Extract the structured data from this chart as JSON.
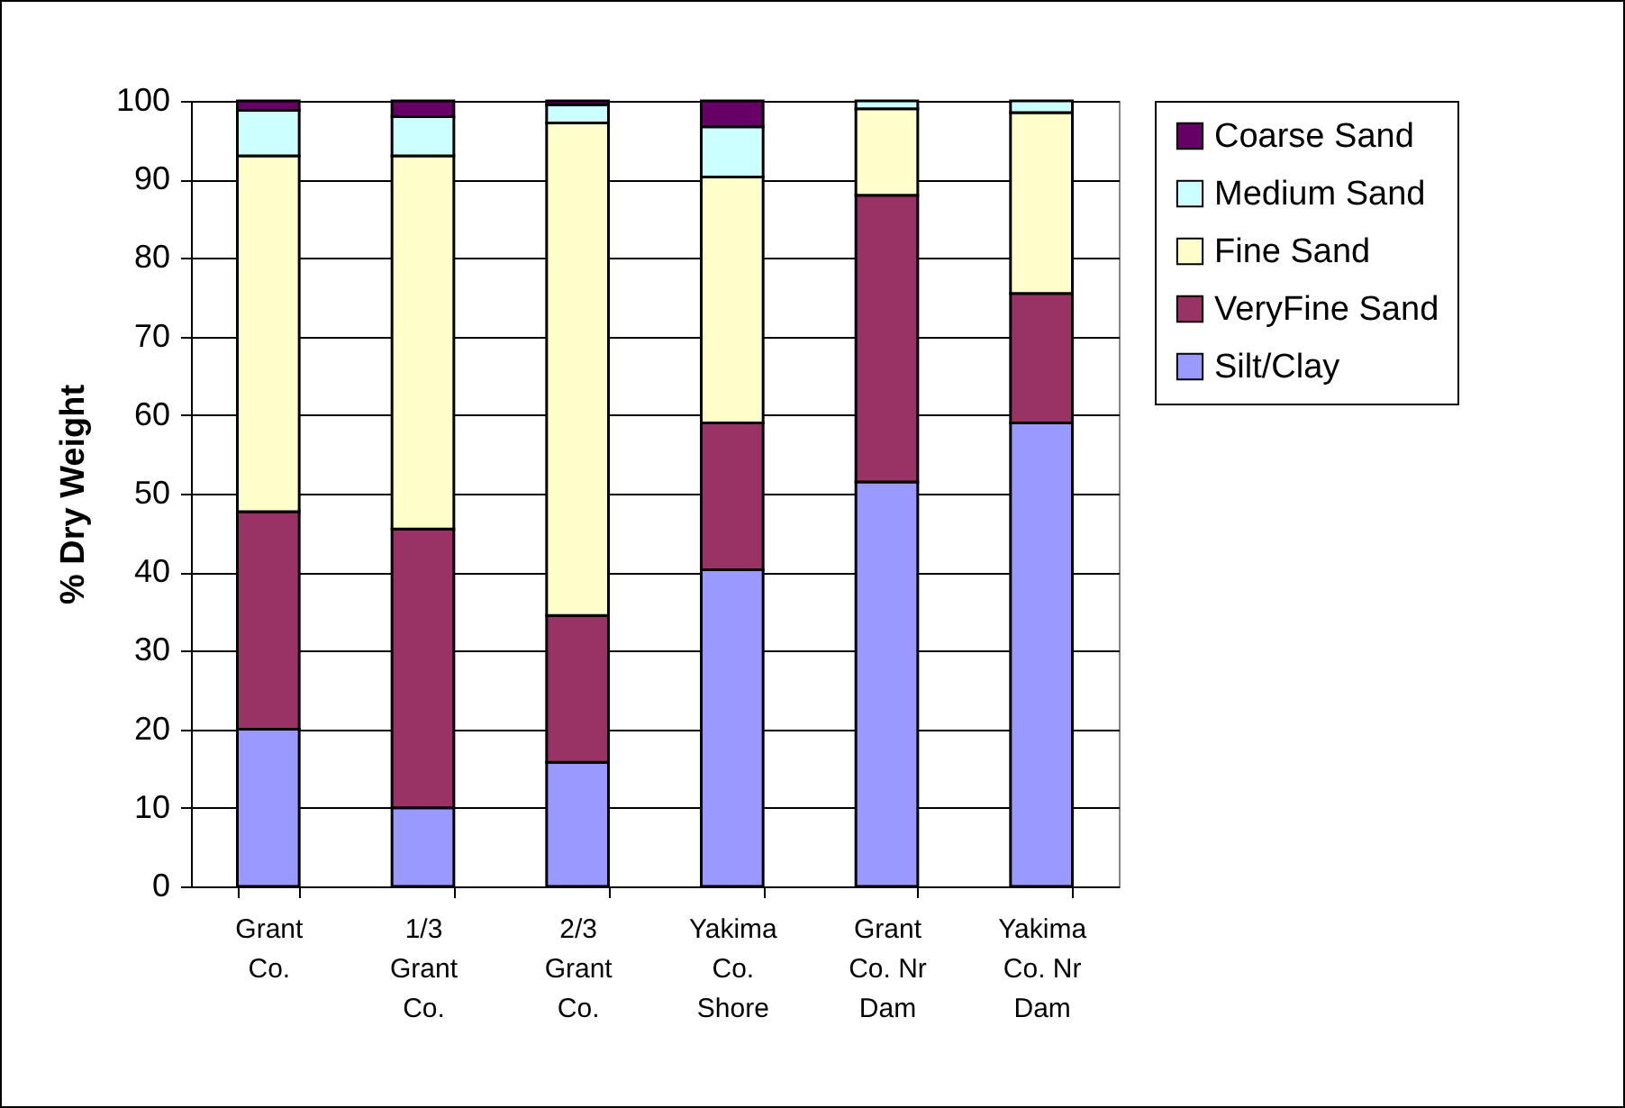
{
  "chart_data": {
    "type": "bar",
    "stacked": true,
    "ylabel": "% Dry Weight",
    "categories": [
      "Grant Co.",
      "1/3 Grant Co.",
      "2/3 Grant Co.",
      "Yakima Co. Shore",
      "Grant Co. Nr Dam",
      "Yakima Co. Nr Dam"
    ],
    "series": [
      {
        "name": "Silt/Clay",
        "color": "#9999ff",
        "values": [
          20,
          10,
          15.8,
          40.3,
          51.5,
          59
        ]
      },
      {
        "name": "VeryFine Sand",
        "color": "#993366",
        "values": [
          27.7,
          35.5,
          18.7,
          18.7,
          36.5,
          16.5
        ]
      },
      {
        "name": "Fine Sand",
        "color": "#ffffcc",
        "values": [
          45.3,
          47.5,
          62.7,
          31.3,
          11,
          23
        ]
      },
      {
        "name": "Medium Sand",
        "color": "#ccffff",
        "values": [
          5.8,
          5,
          2.3,
          6.4,
          1,
          1.5
        ]
      },
      {
        "name": "Coarse Sand",
        "color": "#660066",
        "values": [
          1.2,
          2,
          0.5,
          3.3,
          0,
          0
        ]
      }
    ],
    "ylim": [
      0,
      100
    ],
    "yticks": [
      0,
      10,
      20,
      30,
      40,
      50,
      60,
      70,
      80,
      90,
      100
    ],
    "grid": "y",
    "legend": "right"
  }
}
